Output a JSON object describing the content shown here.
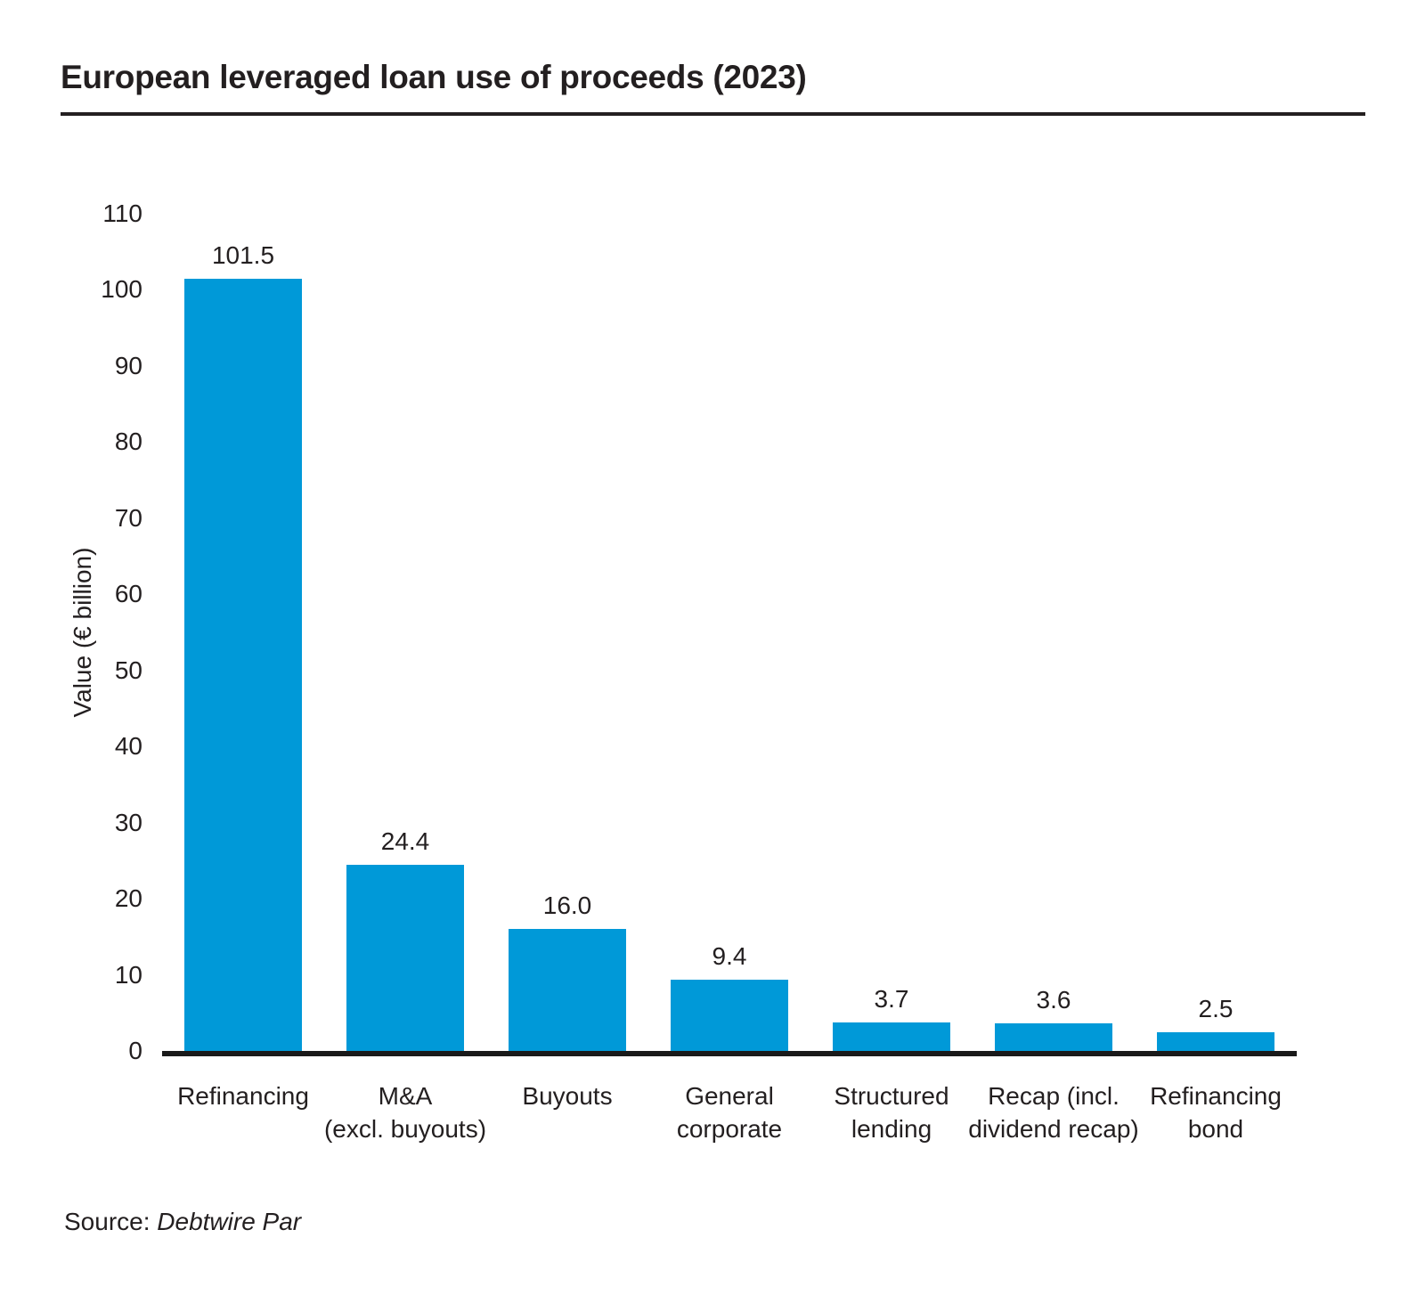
{
  "title": "European leveraged loan use of proceeds (2023)",
  "source": {
    "label": "Source:",
    "name": "Debtwire Par"
  },
  "chart_data": {
    "type": "bar",
    "title": "European leveraged loan use of proceeds (2023)",
    "categories": [
      "Refinancing",
      "M&A\n(excl. buyouts)",
      "Buyouts",
      "General\ncorporate",
      "Structured\nlending",
      "Recap (incl.\ndividend recap)",
      "Refinancing\nbond"
    ],
    "values": [
      101.5,
      24.4,
      16.0,
      9.4,
      3.7,
      3.6,
      2.5
    ],
    "value_labels": [
      "101.5",
      "24.4",
      "16.0",
      "9.4",
      "3.7",
      "3.6",
      "2.5"
    ],
    "xlabel": "",
    "ylabel": "Value (€ billion)",
    "ylim": [
      0,
      110
    ],
    "yticks": [
      0,
      10,
      20,
      30,
      40,
      50,
      60,
      70,
      80,
      90,
      100,
      110
    ],
    "grid": false,
    "legend": false,
    "bar_color": "#0099d8",
    "axis_color": "#1a1a1a"
  }
}
